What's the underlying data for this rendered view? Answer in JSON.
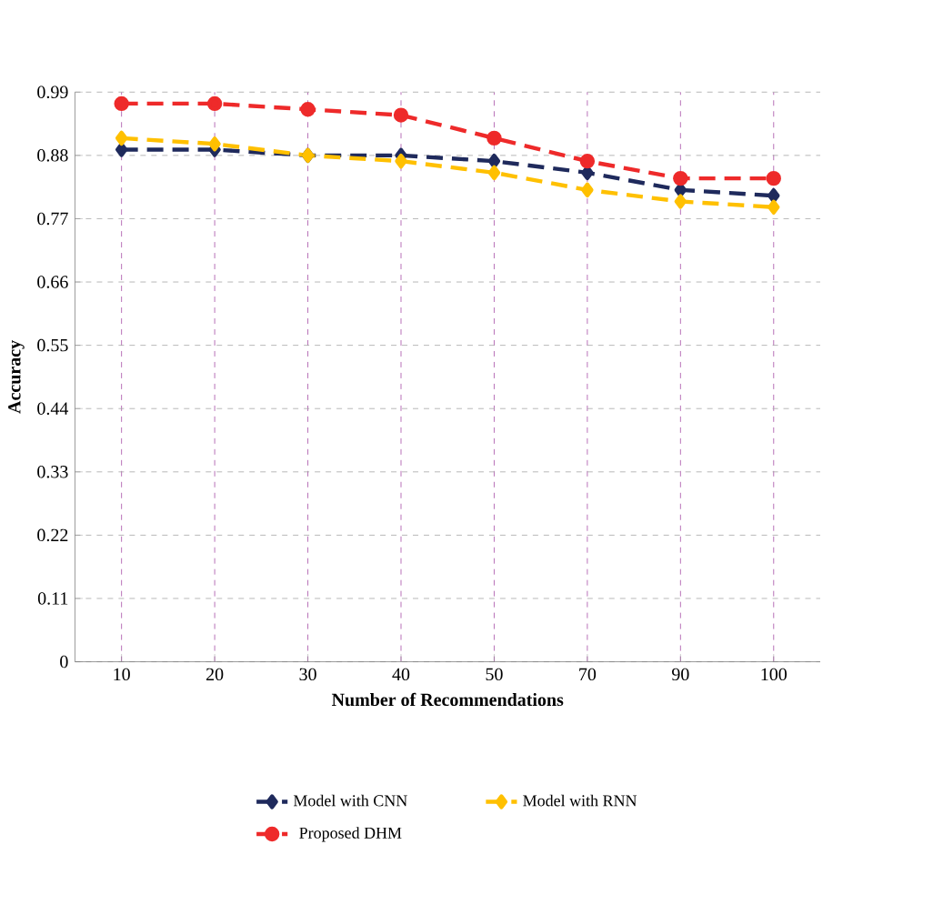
{
  "chart_data": {
    "type": "line",
    "xlabel": "Number of Recommendations",
    "ylabel": "Accuracy",
    "categories": [
      "10",
      "20",
      "30",
      "40",
      "50",
      "70",
      "90",
      "100"
    ],
    "series": [
      {
        "name": "Model with CNN",
        "color": "#1f2a5c",
        "marker": "diamond",
        "values": [
          0.89,
          0.89,
          0.88,
          0.88,
          0.87,
          0.85,
          0.82,
          0.81
        ]
      },
      {
        "name": "Model with RNN",
        "color": "#ffc000",
        "marker": "diamond",
        "values": [
          0.91,
          0.9,
          0.88,
          0.87,
          0.85,
          0.82,
          0.8,
          0.79
        ]
      },
      {
        "name": "Proposed DHM",
        "color": "#ee2a2a",
        "marker": "circle",
        "values": [
          0.97,
          0.97,
          0.96,
          0.95,
          0.91,
          0.87,
          0.84,
          0.84
        ]
      }
    ],
    "ylim": [
      0,
      0.99
    ],
    "yticks": [
      0,
      0.11,
      0.22,
      0.33,
      0.44,
      0.55,
      0.66,
      0.77,
      0.88,
      0.99
    ],
    "grid": true,
    "legend": "bottom",
    "line_style": "dashed"
  }
}
